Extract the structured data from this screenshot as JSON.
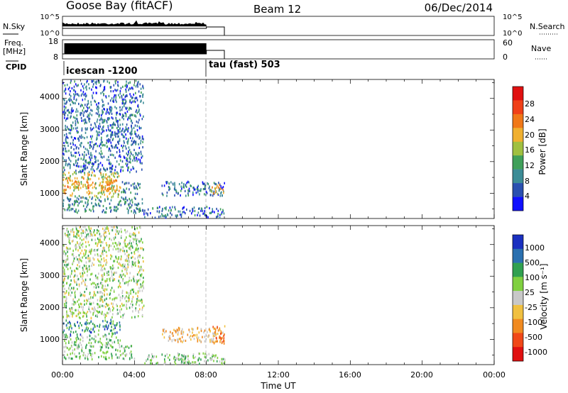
{
  "header": {
    "title": "Goose Bay (fitACF)",
    "beam": "Beam 12",
    "date": "06/Dec/2014"
  },
  "side_labels": {
    "nsky": "N.Sky",
    "freq_line1": "Freq.",
    "freq_line2": "[MHz]",
    "cpid": "CPID",
    "nsearch": "N.Search",
    "nave": "Nave",
    "nsky_ticks": [
      "10^5",
      "10^0"
    ],
    "nsearch_ticks": [
      "10^5",
      "10^0"
    ],
    "freq_ticks": [
      "18",
      "8"
    ],
    "nave_ticks": [
      "60",
      "0"
    ]
  },
  "cpid_labels": [
    "icescan -1200",
    "tau (fast) 503"
  ],
  "colors": {
    "power_scale": [
      "#1010ff",
      "#2a50b0",
      "#3c8c96",
      "#40a05a",
      "#a0c040",
      "#f0b030",
      "#f07818",
      "#f04018",
      "#e01010"
    ],
    "velocity_scale": [
      "#e01010",
      "#f04818",
      "#f08a20",
      "#f0c040",
      "#c8c8c8",
      "#80d040",
      "#30a050",
      "#2a70b0",
      "#1a30c0"
    ]
  },
  "chart_data": [
    {
      "type": "heatmap",
      "panel": "power",
      "xlabel": "",
      "ylabel": "Slant Range [km]",
      "xlim": [
        "00:00",
        "24:00"
      ],
      "ylim": [
        200,
        4600
      ],
      "yticks": [
        "1000",
        "2000",
        "3000",
        "4000"
      ],
      "colorbar_label": "Power [dB]",
      "colorbar_ticks": [
        "4",
        "8",
        "12",
        "16",
        "20",
        "24",
        "28"
      ],
      "colorbar_range": [
        0,
        32
      ],
      "data_end_time": "09:00",
      "cpid_change_time": "08:00",
      "regions": [
        {
          "t": [
            0.0,
            3.2
          ],
          "r": [
            900,
            1700
          ],
          "level": 4.5
        },
        {
          "t": [
            0.2,
            1.5
          ],
          "r": [
            1200,
            1500
          ],
          "level": 5.5
        },
        {
          "t": [
            2.0,
            3.0
          ],
          "r": [
            1150,
            1450
          ],
          "level": 5.0
        },
        {
          "t": [
            0.0,
            4.5
          ],
          "r": [
            400,
            900
          ],
          "level": 2.0
        },
        {
          "t": [
            3.2,
            4.3
          ],
          "r": [
            1000,
            1400
          ],
          "level": 2.0
        },
        {
          "t": [
            5.5,
            9.0
          ],
          "r": [
            950,
            1400
          ],
          "level": 1.5
        },
        {
          "t": [
            8.2,
            9.0
          ],
          "r": [
            1000,
            1300
          ],
          "level": 5.0
        },
        {
          "t": [
            4.5,
            9.0
          ],
          "r": [
            250,
            600
          ],
          "level": 1.5
        },
        {
          "t": [
            0.0,
            4.5
          ],
          "r": [
            1700,
            4600
          ],
          "level": 1.5
        }
      ]
    },
    {
      "type": "heatmap",
      "panel": "velocity",
      "xlabel": "Time UT",
      "ylabel": "Slant Range [km]",
      "xlim": [
        "00:00",
        "24:00"
      ],
      "ylim": [
        200,
        4600
      ],
      "xticks": [
        "00:00",
        "04:00",
        "08:00",
        "12:00",
        "16:00",
        "20:00",
        "00:00"
      ],
      "yticks": [
        "1000",
        "2000",
        "3000",
        "4000"
      ],
      "colorbar_label": "Velocity [m s⁻¹]",
      "colorbar_ticks": [
        "1000",
        "500",
        "100",
        "25",
        "-25",
        "-100",
        "-500",
        "-1000"
      ],
      "data_end_time": "09:00",
      "regions": [
        {
          "t": [
            0.0,
            3.2
          ],
          "r": [
            1150,
            1650
          ],
          "level": 6.5
        },
        {
          "t": [
            0.0,
            3.2
          ],
          "r": [
            900,
            1150
          ],
          "level": 5.0
        },
        {
          "t": [
            0.0,
            4.0
          ],
          "r": [
            400,
            900
          ],
          "level": 5.0
        },
        {
          "t": [
            5.5,
            9.0
          ],
          "r": [
            950,
            1400
          ],
          "level": 3.0
        },
        {
          "t": [
            8.3,
            9.0
          ],
          "r": [
            900,
            1500
          ],
          "level": 2.0
        },
        {
          "t": [
            0.0,
            4.5
          ],
          "r": [
            1700,
            4600
          ],
          "level": 4.5
        },
        {
          "t": [
            4.5,
            9.0
          ],
          "r": [
            250,
            600
          ],
          "level": 5.0
        }
      ]
    }
  ]
}
